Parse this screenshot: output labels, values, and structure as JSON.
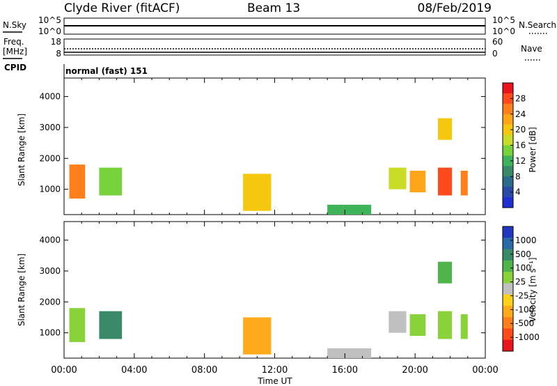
{
  "header": {
    "station": "Clyde River (fitACF)",
    "beam": "Beam 13",
    "date": "08/Feb/2019"
  },
  "nsky_panel": {
    "left_label": "N.Sky",
    "right_label": "N.Search",
    "left_ticks": [
      "10^5",
      "10^0"
    ],
    "right_ticks": [
      "10^5",
      "10^0"
    ]
  },
  "freq_panel": {
    "left_label_line1": "Freq.",
    "left_label_line2": "[MHz]",
    "right_label": "Nave",
    "left_ticks": [
      "18",
      "8"
    ],
    "right_ticks": [
      "60",
      "0"
    ]
  },
  "cpid": {
    "label": "CPID",
    "value": "normal (fast) 151"
  },
  "power_panel": {
    "ylabel": "Slant Range [km]",
    "yticks": [
      "4000",
      "3000",
      "2000",
      "1000"
    ],
    "colorbar": {
      "label": "Power [dB]",
      "ticks": [
        "28",
        "24",
        "20",
        "16",
        "12",
        "8",
        "4"
      ],
      "colors": [
        "#e8161c",
        "#ff4a1c",
        "#ff7f1c",
        "#ffa51a",
        "#f5c80f",
        "#c8dc28",
        "#78d23c",
        "#3fb35a",
        "#3a8a6a",
        "#2a6a8a",
        "#2a4aa8",
        "#1f2fd2"
      ]
    }
  },
  "velocity_panel": {
    "ylabel": "Slant Range [km]",
    "yticks": [
      "4000",
      "3000",
      "2000",
      "1000"
    ],
    "colorbar": {
      "label": "Velocity [m s⁻¹]",
      "ticks": [
        "1000",
        "500",
        "100",
        "25",
        "-25",
        "-100",
        "-500",
        "-1000"
      ],
      "colors": [
        "#2038c0",
        "#2a6aa8",
        "#3a8a6a",
        "#4fb44a",
        "#8ad23a",
        "#c0c0c0",
        "#ffd21a",
        "#ffaa1a",
        "#ff7f1c",
        "#ff4a1c",
        "#e8161c"
      ]
    }
  },
  "xaxis": {
    "label": "Time UT",
    "ticks": [
      "00:00",
      "04:00",
      "08:00",
      "12:00",
      "16:00",
      "20:00",
      "00:00"
    ]
  },
  "chart_data": [
    {
      "type": "heatmap",
      "title": "Power",
      "xlabel": "Time UT",
      "ylabel": "Slant Range [km]",
      "xlim": [
        "00:00",
        "24:00"
      ],
      "ylim": [
        180,
        4600
      ],
      "zlabel": "Power [dB]",
      "zlim": [
        0,
        32
      ],
      "cells": [
        {
          "t0": 0.3,
          "t1": 1.2,
          "r0": 700,
          "r1": 1800,
          "z": 24
        },
        {
          "t0": 2.0,
          "t1": 3.3,
          "r0": 800,
          "r1": 1700,
          "z": 14
        },
        {
          "t0": 10.2,
          "t1": 11.8,
          "r0": 300,
          "r1": 1500,
          "z": 20
        },
        {
          "t0": 15.0,
          "t1": 17.5,
          "r0": 180,
          "r1": 500,
          "z": 12
        },
        {
          "t0": 18.5,
          "t1": 19.5,
          "r0": 1000,
          "r1": 1700,
          "z": 16
        },
        {
          "t0": 19.7,
          "t1": 20.6,
          "r0": 900,
          "r1": 1600,
          "z": 22
        },
        {
          "t0": 21.3,
          "t1": 22.1,
          "r0": 800,
          "r1": 1700,
          "z": 28
        },
        {
          "t0": 22.6,
          "t1": 23.0,
          "r0": 800,
          "r1": 1600,
          "z": 24
        },
        {
          "t0": 21.3,
          "t1": 22.1,
          "r0": 2600,
          "r1": 3300,
          "z": 20
        }
      ]
    },
    {
      "type": "heatmap",
      "title": "Velocity",
      "xlabel": "Time UT",
      "ylabel": "Slant Range [km]",
      "xlim": [
        "00:00",
        "24:00"
      ],
      "ylim": [
        180,
        4600
      ],
      "zlabel": "Velocity [m s⁻¹]",
      "zlim": [
        -1000,
        1000
      ],
      "cells": [
        {
          "t0": 0.3,
          "t1": 1.2,
          "r0": 700,
          "r1": 1800,
          "z": 150
        },
        {
          "t0": 2.0,
          "t1": 3.3,
          "r0": 800,
          "r1": 1700,
          "z": 500
        },
        {
          "t0": 10.2,
          "t1": 11.8,
          "r0": 300,
          "r1": 1500,
          "z": -300
        },
        {
          "t0": 15.0,
          "t1": 17.5,
          "r0": 180,
          "r1": 500,
          "z": 60
        },
        {
          "t0": 18.5,
          "t1": 19.5,
          "r0": 1000,
          "r1": 1700,
          "z": -60
        },
        {
          "t0": 19.7,
          "t1": 20.6,
          "r0": 900,
          "r1": 1600,
          "z": 120
        },
        {
          "t0": 21.3,
          "t1": 22.1,
          "r0": 800,
          "r1": 1700,
          "z": 200
        },
        {
          "t0": 22.6,
          "t1": 23.0,
          "r0": 800,
          "r1": 1600,
          "z": 100
        },
        {
          "t0": 21.3,
          "t1": 22.1,
          "r0": 2600,
          "r1": 3300,
          "z": 400
        }
      ]
    }
  ]
}
